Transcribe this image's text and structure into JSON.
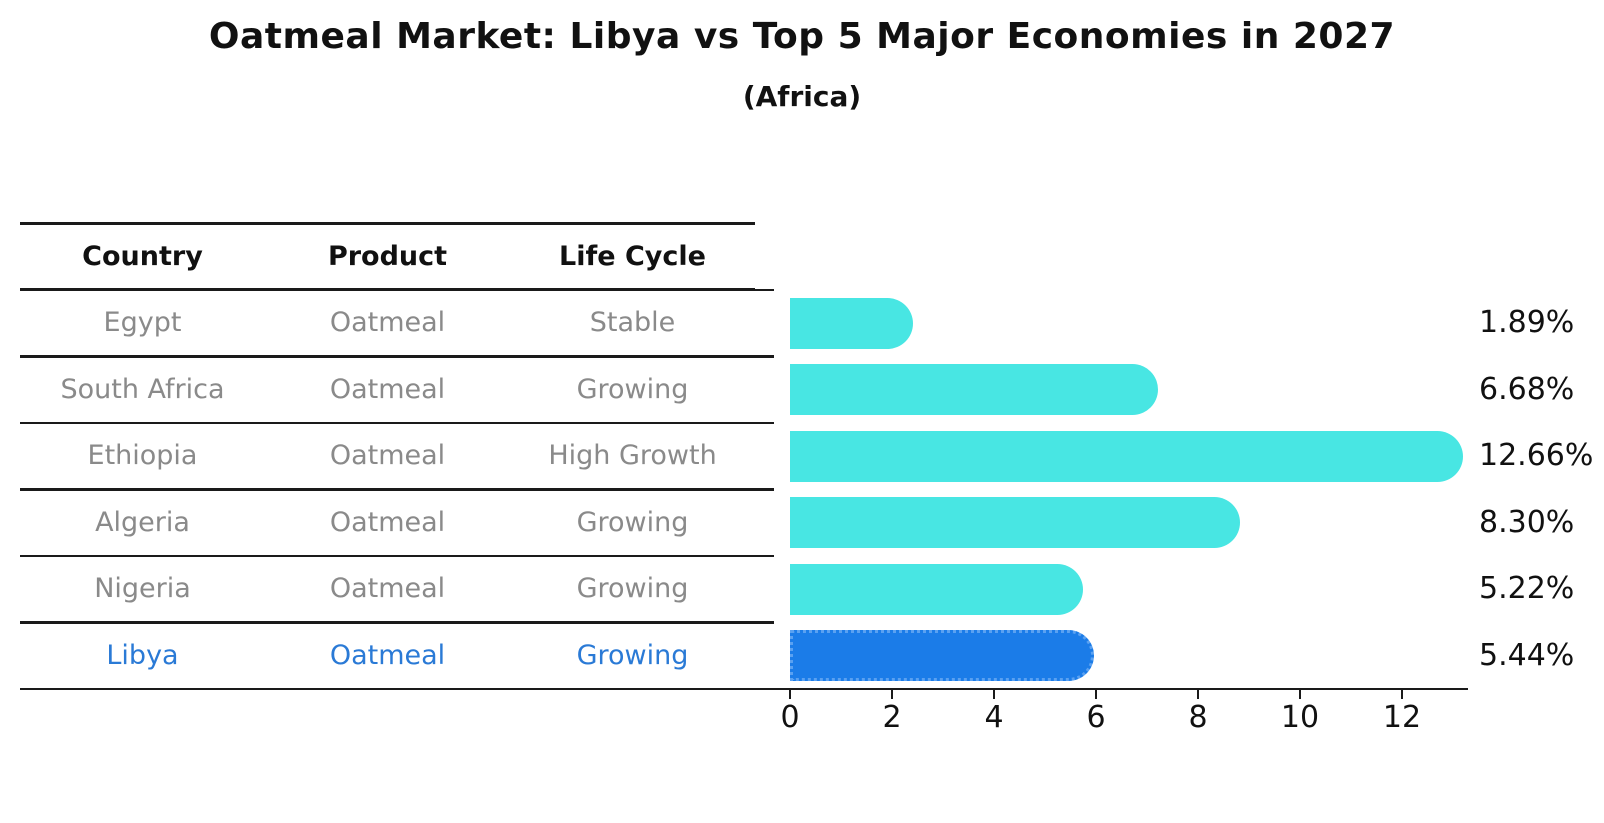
{
  "title": "Oatmeal Market: Libya vs Top 5 Major Economies in 2027",
  "subtitle": "(Africa)",
  "table": {
    "columns": [
      "Country",
      "Product",
      "Life Cycle"
    ],
    "rows": [
      {
        "country": "Egypt",
        "product": "Oatmeal",
        "life_cycle": "Stable",
        "highlight": false
      },
      {
        "country": "South Africa",
        "product": "Oatmeal",
        "life_cycle": "Growing",
        "highlight": false
      },
      {
        "country": "Ethiopia",
        "product": "Oatmeal",
        "life_cycle": "High Growth",
        "highlight": false
      },
      {
        "country": "Algeria",
        "product": "Oatmeal",
        "life_cycle": "Growing",
        "highlight": false
      },
      {
        "country": "Nigeria",
        "product": "Oatmeal",
        "life_cycle": "Growing",
        "highlight": true
      }
    ],
    "highlight_row": {
      "country": "Libya",
      "product": "Oatmeal",
      "life_cycle": "Growing"
    }
  },
  "chart_data": {
    "type": "bar",
    "orientation": "horizontal",
    "title": "Oatmeal Market: Libya vs Top 5 Major Economies in 2027",
    "subtitle": "(Africa)",
    "categories": [
      "Egypt",
      "South Africa",
      "Ethiopia",
      "Algeria",
      "Nigeria",
      "Libya"
    ],
    "values": [
      1.89,
      6.68,
      12.66,
      8.3,
      5.22,
      5.44
    ],
    "value_labels": [
      "1.89%",
      "6.68%",
      "12.66%",
      "8.30%",
      "5.22%",
      "5.44%"
    ],
    "row_life_cycles": [
      "Stable",
      "Growing",
      "High Growth",
      "Growing",
      "Growing",
      "Growing"
    ],
    "highlight_index": 5,
    "x_ticks": [
      0,
      2,
      4,
      6,
      8,
      10,
      12
    ],
    "xlim": [
      0,
      13.3
    ],
    "grid": false,
    "legend": "none",
    "xlabel": "",
    "ylabel": ""
  },
  "colors": {
    "bar": "#48e6e3",
    "highlight_bar": "#1b7ce8",
    "highlight_bar_border": "#5aa1f1",
    "row_text": "#8a8a8a",
    "highlight_text": "#2a7ad6",
    "axis": "#1a1a1a",
    "label_text": "#111111"
  }
}
